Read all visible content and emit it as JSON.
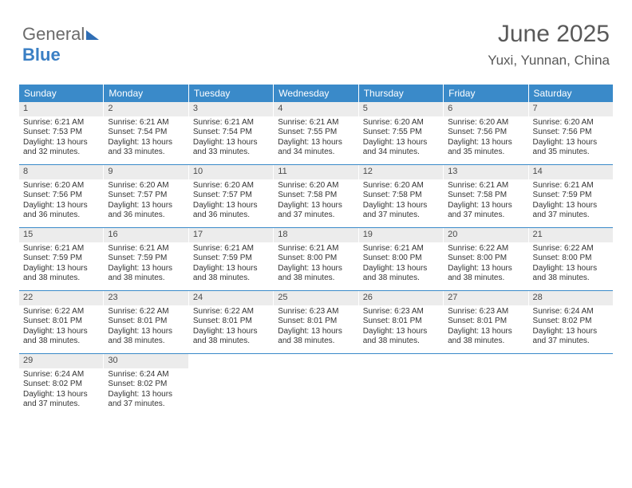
{
  "logo": {
    "part1": "General",
    "part2": "Blue"
  },
  "header": {
    "month": "June 2025",
    "location": "Yuxi, Yunnan, China"
  },
  "colors": {
    "header_bar": "#3a8ac9",
    "daynum_bg": "#ececec",
    "week_border": "#3a8ac9",
    "text": "#343434",
    "title_text": "#595959"
  },
  "daysOfWeek": [
    "Sunday",
    "Monday",
    "Tuesday",
    "Wednesday",
    "Thursday",
    "Friday",
    "Saturday"
  ],
  "weeks": [
    [
      {
        "n": "1",
        "sr": "Sunrise: 6:21 AM",
        "ss": "Sunset: 7:53 PM",
        "d1": "Daylight: 13 hours",
        "d2": "and 32 minutes."
      },
      {
        "n": "2",
        "sr": "Sunrise: 6:21 AM",
        "ss": "Sunset: 7:54 PM",
        "d1": "Daylight: 13 hours",
        "d2": "and 33 minutes."
      },
      {
        "n": "3",
        "sr": "Sunrise: 6:21 AM",
        "ss": "Sunset: 7:54 PM",
        "d1": "Daylight: 13 hours",
        "d2": "and 33 minutes."
      },
      {
        "n": "4",
        "sr": "Sunrise: 6:21 AM",
        "ss": "Sunset: 7:55 PM",
        "d1": "Daylight: 13 hours",
        "d2": "and 34 minutes."
      },
      {
        "n": "5",
        "sr": "Sunrise: 6:20 AM",
        "ss": "Sunset: 7:55 PM",
        "d1": "Daylight: 13 hours",
        "d2": "and 34 minutes."
      },
      {
        "n": "6",
        "sr": "Sunrise: 6:20 AM",
        "ss": "Sunset: 7:56 PM",
        "d1": "Daylight: 13 hours",
        "d2": "and 35 minutes."
      },
      {
        "n": "7",
        "sr": "Sunrise: 6:20 AM",
        "ss": "Sunset: 7:56 PM",
        "d1": "Daylight: 13 hours",
        "d2": "and 35 minutes."
      }
    ],
    [
      {
        "n": "8",
        "sr": "Sunrise: 6:20 AM",
        "ss": "Sunset: 7:56 PM",
        "d1": "Daylight: 13 hours",
        "d2": "and 36 minutes."
      },
      {
        "n": "9",
        "sr": "Sunrise: 6:20 AM",
        "ss": "Sunset: 7:57 PM",
        "d1": "Daylight: 13 hours",
        "d2": "and 36 minutes."
      },
      {
        "n": "10",
        "sr": "Sunrise: 6:20 AM",
        "ss": "Sunset: 7:57 PM",
        "d1": "Daylight: 13 hours",
        "d2": "and 36 minutes."
      },
      {
        "n": "11",
        "sr": "Sunrise: 6:20 AM",
        "ss": "Sunset: 7:58 PM",
        "d1": "Daylight: 13 hours",
        "d2": "and 37 minutes."
      },
      {
        "n": "12",
        "sr": "Sunrise: 6:20 AM",
        "ss": "Sunset: 7:58 PM",
        "d1": "Daylight: 13 hours",
        "d2": "and 37 minutes."
      },
      {
        "n": "13",
        "sr": "Sunrise: 6:21 AM",
        "ss": "Sunset: 7:58 PM",
        "d1": "Daylight: 13 hours",
        "d2": "and 37 minutes."
      },
      {
        "n": "14",
        "sr": "Sunrise: 6:21 AM",
        "ss": "Sunset: 7:59 PM",
        "d1": "Daylight: 13 hours",
        "d2": "and 37 minutes."
      }
    ],
    [
      {
        "n": "15",
        "sr": "Sunrise: 6:21 AM",
        "ss": "Sunset: 7:59 PM",
        "d1": "Daylight: 13 hours",
        "d2": "and 38 minutes."
      },
      {
        "n": "16",
        "sr": "Sunrise: 6:21 AM",
        "ss": "Sunset: 7:59 PM",
        "d1": "Daylight: 13 hours",
        "d2": "and 38 minutes."
      },
      {
        "n": "17",
        "sr": "Sunrise: 6:21 AM",
        "ss": "Sunset: 7:59 PM",
        "d1": "Daylight: 13 hours",
        "d2": "and 38 minutes."
      },
      {
        "n": "18",
        "sr": "Sunrise: 6:21 AM",
        "ss": "Sunset: 8:00 PM",
        "d1": "Daylight: 13 hours",
        "d2": "and 38 minutes."
      },
      {
        "n": "19",
        "sr": "Sunrise: 6:21 AM",
        "ss": "Sunset: 8:00 PM",
        "d1": "Daylight: 13 hours",
        "d2": "and 38 minutes."
      },
      {
        "n": "20",
        "sr": "Sunrise: 6:22 AM",
        "ss": "Sunset: 8:00 PM",
        "d1": "Daylight: 13 hours",
        "d2": "and 38 minutes."
      },
      {
        "n": "21",
        "sr": "Sunrise: 6:22 AM",
        "ss": "Sunset: 8:00 PM",
        "d1": "Daylight: 13 hours",
        "d2": "and 38 minutes."
      }
    ],
    [
      {
        "n": "22",
        "sr": "Sunrise: 6:22 AM",
        "ss": "Sunset: 8:01 PM",
        "d1": "Daylight: 13 hours",
        "d2": "and 38 minutes."
      },
      {
        "n": "23",
        "sr": "Sunrise: 6:22 AM",
        "ss": "Sunset: 8:01 PM",
        "d1": "Daylight: 13 hours",
        "d2": "and 38 minutes."
      },
      {
        "n": "24",
        "sr": "Sunrise: 6:22 AM",
        "ss": "Sunset: 8:01 PM",
        "d1": "Daylight: 13 hours",
        "d2": "and 38 minutes."
      },
      {
        "n": "25",
        "sr": "Sunrise: 6:23 AM",
        "ss": "Sunset: 8:01 PM",
        "d1": "Daylight: 13 hours",
        "d2": "and 38 minutes."
      },
      {
        "n": "26",
        "sr": "Sunrise: 6:23 AM",
        "ss": "Sunset: 8:01 PM",
        "d1": "Daylight: 13 hours",
        "d2": "and 38 minutes."
      },
      {
        "n": "27",
        "sr": "Sunrise: 6:23 AM",
        "ss": "Sunset: 8:01 PM",
        "d1": "Daylight: 13 hours",
        "d2": "and 38 minutes."
      },
      {
        "n": "28",
        "sr": "Sunrise: 6:24 AM",
        "ss": "Sunset: 8:02 PM",
        "d1": "Daylight: 13 hours",
        "d2": "and 37 minutes."
      }
    ],
    [
      {
        "n": "29",
        "sr": "Sunrise: 6:24 AM",
        "ss": "Sunset: 8:02 PM",
        "d1": "Daylight: 13 hours",
        "d2": "and 37 minutes."
      },
      {
        "n": "30",
        "sr": "Sunrise: 6:24 AM",
        "ss": "Sunset: 8:02 PM",
        "d1": "Daylight: 13 hours",
        "d2": "and 37 minutes."
      },
      {
        "empty": true
      },
      {
        "empty": true
      },
      {
        "empty": true
      },
      {
        "empty": true
      },
      {
        "empty": true
      }
    ]
  ]
}
